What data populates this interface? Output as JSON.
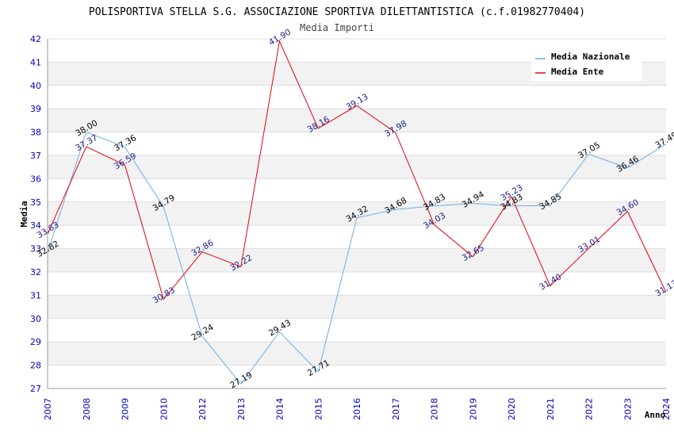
{
  "chart_data": {
    "type": "line",
    "title": "POLISPORTIVA STELLA S.G. ASSOCIAZIONE SPORTIVA DILETTANTISTICA (c.f.01982770404)",
    "subtitle": "Media Importi",
    "xlabel": "Anno",
    "ylabel": "Media",
    "ylim": [
      27,
      42
    ],
    "yticks": [
      "27",
      "28",
      "29",
      "30",
      "31",
      "32",
      "33",
      "34",
      "35",
      "36",
      "37",
      "38",
      "39",
      "40",
      "41",
      "42"
    ],
    "categories": [
      "2007",
      "2008",
      "2009",
      "2010",
      "2012",
      "2013",
      "2014",
      "2015",
      "2016",
      "2017",
      "2018",
      "2019",
      "2020",
      "2021",
      "2022",
      "2023",
      "2024"
    ],
    "series": [
      {
        "name": "Media Nazionale",
        "color": "#6aaee8",
        "values": [
          32.82,
          38.0,
          37.36,
          34.79,
          29.24,
          27.19,
          29.43,
          27.71,
          34.32,
          34.68,
          34.83,
          34.94,
          34.83,
          34.85,
          37.05,
          36.46,
          37.49
        ],
        "labels": [
          "32.82",
          "38.00",
          "37.36",
          "34.79",
          "29.24",
          "27.19",
          "29.43",
          "27.71",
          "34.32",
          "34.68",
          "34.83",
          "34.94",
          "34.83",
          "34.85",
          "37.05",
          "36.46",
          "37.49"
        ]
      },
      {
        "name": "Media Ente",
        "color": "#e8000b",
        "values": [
          33.63,
          37.37,
          36.59,
          30.83,
          32.86,
          32.22,
          41.9,
          38.16,
          39.13,
          37.98,
          34.03,
          32.65,
          35.23,
          31.4,
          33.01,
          34.6,
          31.13
        ],
        "labels": [
          "33.63",
          "37.37",
          "36.59",
          "30.83",
          "32.86",
          "32.22",
          "41.90",
          "38.16",
          "39.13",
          "37.98",
          "34.03",
          "32.65",
          "35.23",
          "31.40",
          "33.01",
          "34.60",
          "31.13"
        ]
      }
    ],
    "legend": {
      "position": "top-right"
    },
    "grid": true
  }
}
